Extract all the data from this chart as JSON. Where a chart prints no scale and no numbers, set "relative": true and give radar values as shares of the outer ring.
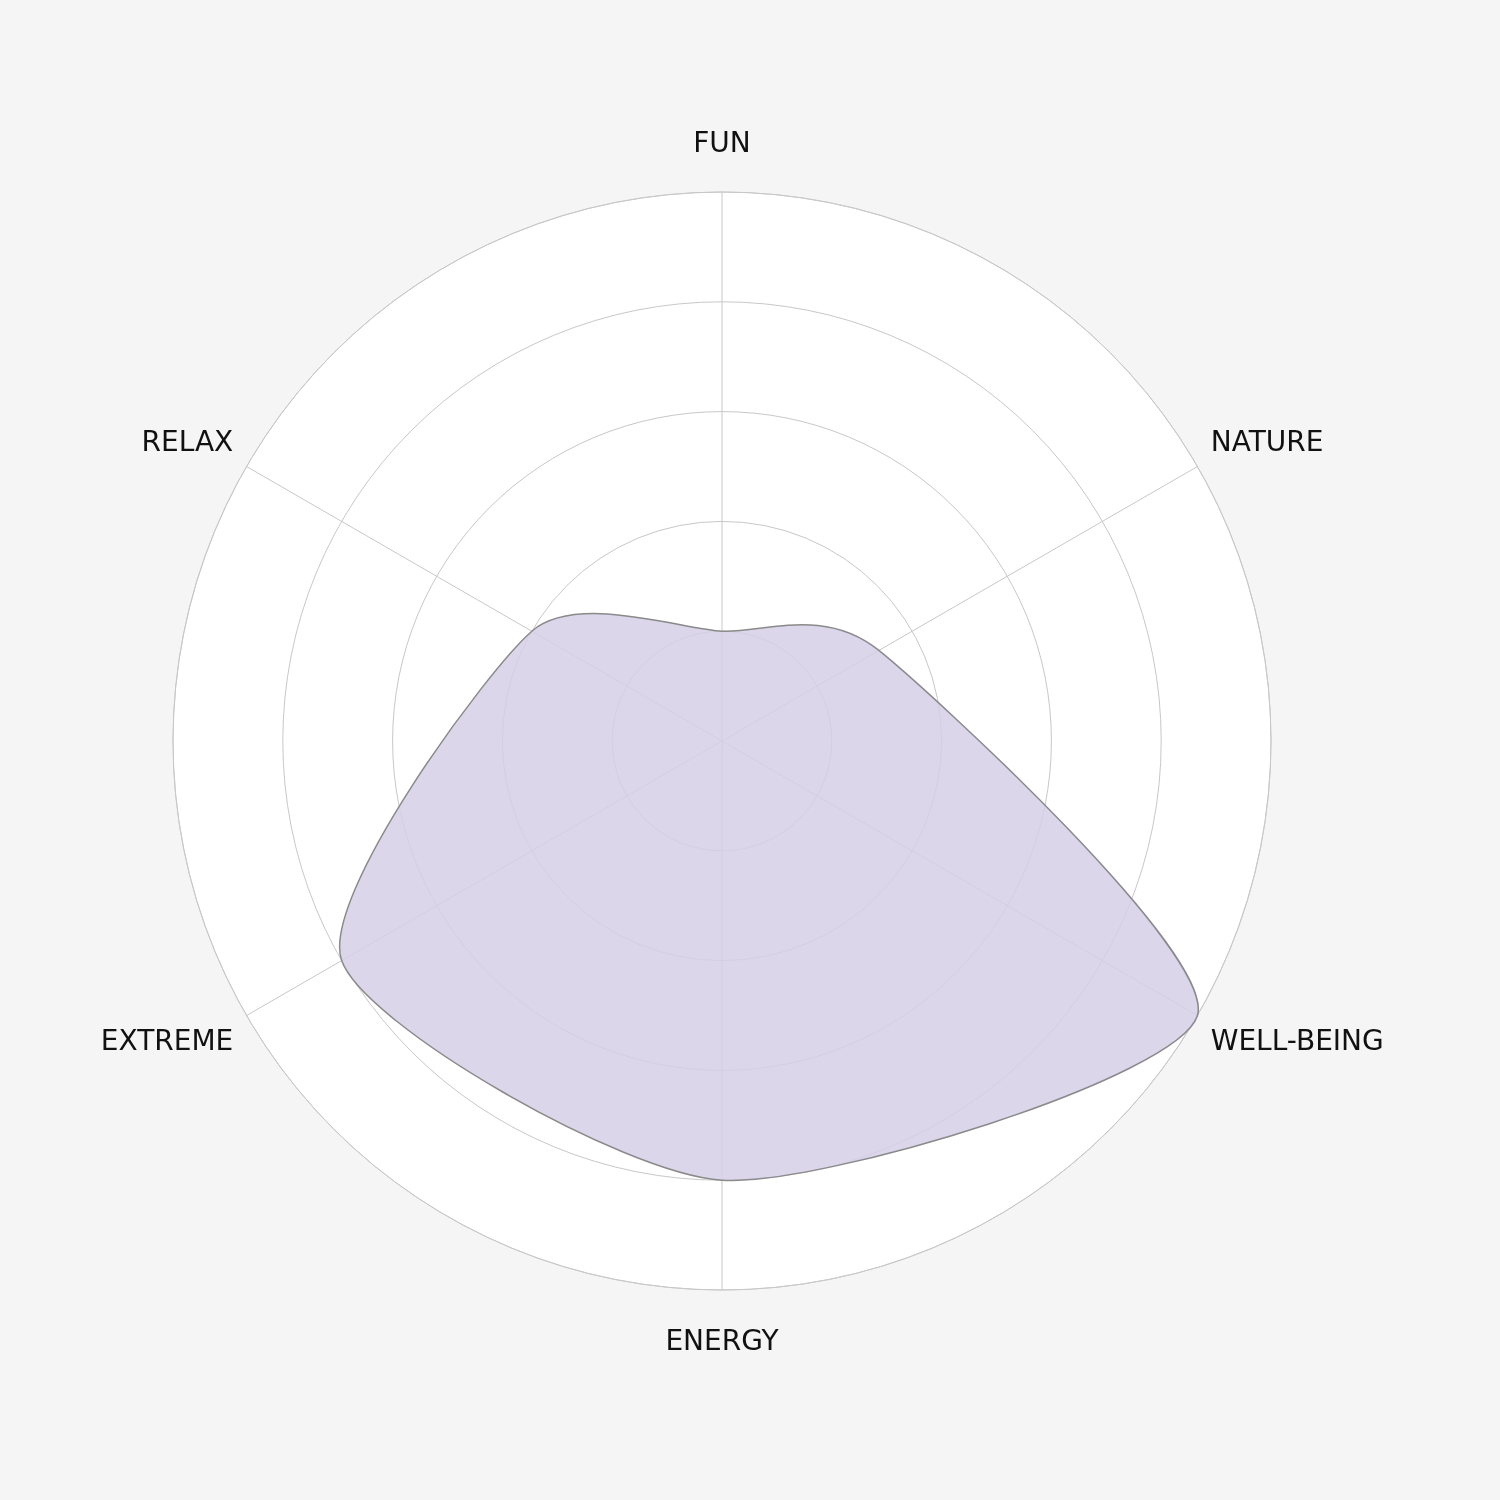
{
  "chart_data": {
    "type": "radar",
    "relative": true,
    "grid": true,
    "categories": [
      "FUN",
      "NATURE",
      "WELL-BEING",
      "ENERGY",
      "EXTREME",
      "RELAX"
    ],
    "series": [
      {
        "color": "#d5cfe6",
        "values": [
          0.2,
          0.33,
          1.0,
          0.8,
          0.8,
          0.4
        ]
      }
    ]
  }
}
